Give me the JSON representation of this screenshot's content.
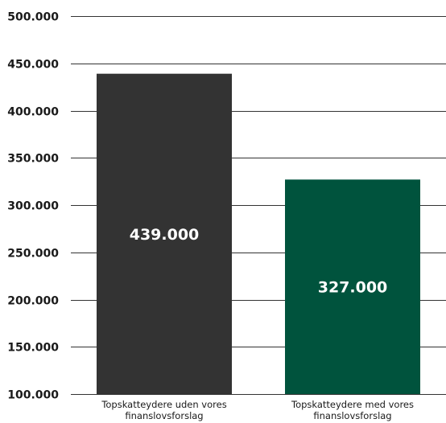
{
  "chart_data": {
    "type": "bar",
    "categories": [
      "Topskatteydere uden vores finanslovsforslag",
      "Topskatteydere med vores finanslovsforslag"
    ],
    "values": [
      439000,
      327000
    ],
    "data_labels": [
      "439.000",
      "327.000"
    ],
    "bar_colors": [
      "#333333",
      "#00533d"
    ],
    "ylim": [
      100000,
      500000
    ],
    "y_ticks": [
      {
        "value": 100000,
        "label": "100.000"
      },
      {
        "value": 150000,
        "label": "150.000"
      },
      {
        "value": 200000,
        "label": "200.000"
      },
      {
        "value": 250000,
        "label": "250.000"
      },
      {
        "value": 300000,
        "label": "300.000"
      },
      {
        "value": 350000,
        "label": "350.000"
      },
      {
        "value": 400000,
        "label": "400.000"
      },
      {
        "value": 450000,
        "label": "450.000"
      },
      {
        "value": 500000,
        "label": "500.000"
      }
    ],
    "grid": true,
    "title": "",
    "xlabel": "",
    "ylabel": ""
  }
}
